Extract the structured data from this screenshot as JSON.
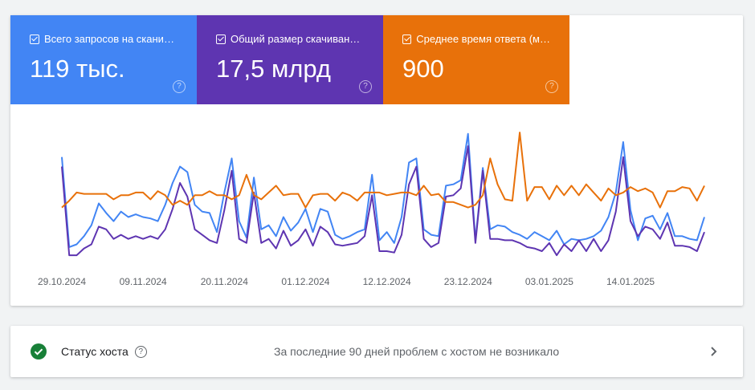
{
  "tiles": [
    {
      "value": "119 тыс."
    },
    {
      "value": "17,5 млрд"
    },
    {
      "value": "900"
    }
  ],
  "chart_data": {
    "type": "line",
    "categories": [
      "29.10.2024",
      null,
      null,
      null,
      null,
      null,
      null,
      null,
      null,
      null,
      null,
      "09.11.2024",
      null,
      null,
      null,
      null,
      null,
      null,
      null,
      null,
      null,
      null,
      "20.11.2024",
      null,
      null,
      null,
      null,
      null,
      null,
      null,
      null,
      null,
      null,
      "01.12.2024",
      null,
      null,
      null,
      null,
      null,
      null,
      null,
      null,
      null,
      null,
      "12.12.2024",
      null,
      null,
      null,
      null,
      null,
      null,
      null,
      null,
      null,
      null,
      "23.12.2024",
      null,
      null,
      null,
      null,
      null,
      null,
      null,
      null,
      null,
      null,
      "03.01.2025",
      null,
      null,
      null,
      null,
      null,
      null,
      null,
      null,
      null,
      null,
      "14.01.2025",
      null,
      null,
      null,
      null,
      null,
      null,
      null,
      null,
      null,
      null
    ],
    "ylim": [
      0,
      100
    ],
    "series": [
      {
        "name": "Всего запросов на скани…",
        "color": "#4285f4",
        "values": [
          79,
          13,
          15,
          21,
          29,
          45,
          38,
          32,
          39,
          35,
          37,
          35,
          34,
          32,
          44,
          60,
          72,
          68,
          44,
          39,
          38,
          24,
          53,
          78,
          32,
          20,
          64,
          26,
          29,
          21,
          35,
          25,
          31,
          41,
          24,
          41,
          39,
          22,
          19,
          21,
          24,
          26,
          66,
          18,
          24,
          16,
          35,
          75,
          78,
          26,
          22,
          21,
          58,
          59,
          62,
          96,
          18,
          71,
          26,
          29,
          28,
          24,
          22,
          19,
          24,
          21,
          18,
          25,
          15,
          19,
          18,
          19,
          21,
          25,
          35,
          53,
          90,
          40,
          18,
          34,
          36,
          26,
          38,
          21,
          21,
          19,
          18,
          35
        ]
      },
      {
        "name": "Общий размер скачиван…",
        "color": "#5e35b1",
        "values": [
          72,
          7,
          7,
          12,
          15,
          28,
          26,
          19,
          22,
          19,
          21,
          19,
          21,
          19,
          26,
          41,
          60,
          50,
          26,
          22,
          18,
          16,
          40,
          69,
          19,
          16,
          53,
          16,
          19,
          12,
          25,
          14,
          18,
          26,
          14,
          28,
          24,
          15,
          14,
          15,
          16,
          21,
          51,
          10,
          10,
          9,
          22,
          59,
          72,
          19,
          13,
          16,
          50,
          51,
          56,
          87,
          16,
          69,
          19,
          19,
          18,
          18,
          16,
          13,
          12,
          10,
          16,
          7,
          15,
          10,
          18,
          10,
          19,
          10,
          18,
          39,
          79,
          32,
          21,
          28,
          26,
          19,
          31,
          14,
          14,
          13,
          10,
          24
        ]
      },
      {
        "name": "Среднее время ответа (м…",
        "color": "#e8710a",
        "values": [
          42,
          47,
          53,
          52,
          52,
          52,
          52,
          48,
          51,
          51,
          53,
          53,
          48,
          54,
          51,
          44,
          47,
          44,
          51,
          51,
          54,
          51,
          51,
          48,
          51,
          66,
          51,
          48,
          53,
          58,
          51,
          52,
          52,
          42,
          51,
          52,
          52,
          47,
          53,
          51,
          47,
          53,
          53,
          53,
          51,
          52,
          53,
          53,
          51,
          58,
          51,
          52,
          46,
          46,
          44,
          42,
          44,
          51,
          78,
          59,
          48,
          47,
          97,
          47,
          57,
          57,
          48,
          58,
          51,
          58,
          51,
          59,
          53,
          47,
          56,
          51,
          53,
          57,
          54,
          56,
          53,
          42,
          54,
          54,
          57,
          56,
          47,
          58
        ]
      }
    ]
  },
  "host_status": {
    "title": "Статус хоста",
    "message": "За последние 90 дней проблем с хостом не возникало"
  }
}
